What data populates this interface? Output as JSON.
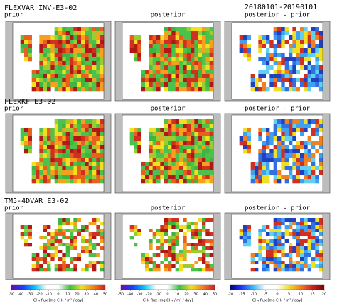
{
  "header": {
    "date": "20180101-20190101"
  },
  "rows": [
    {
      "title": "FLEXVAR INV-E3-02",
      "panels": [
        "prior",
        "posterior",
        "posterior - prior"
      ]
    },
    {
      "title": "FLExKF E3-02",
      "panels": [
        "prior",
        "posterior",
        "posterior - prior"
      ]
    },
    {
      "title": "TM5-4DVAR E3-02",
      "panels": [
        "prior",
        "posterior",
        "posterior - prior"
      ]
    }
  ],
  "colorbars": [
    {
      "ticks": [
        -50,
        -40,
        -30,
        -20,
        -10,
        0,
        10,
        20,
        30,
        40,
        50
      ],
      "label": "CH₄ flux [mg CH₄ / m² / day]"
    },
    {
      "ticks": [
        -50,
        -40,
        -30,
        -20,
        -10,
        0,
        10,
        20,
        30,
        40,
        50
      ],
      "label": "CH₄ flux [mg CH₄ / m² / day]"
    },
    {
      "ticks": [
        -20,
        -15,
        -10,
        -5,
        0,
        5,
        10,
        15,
        20
      ],
      "label": "CH₄ flux [mg CH₄ / m² / day]"
    }
  ]
}
